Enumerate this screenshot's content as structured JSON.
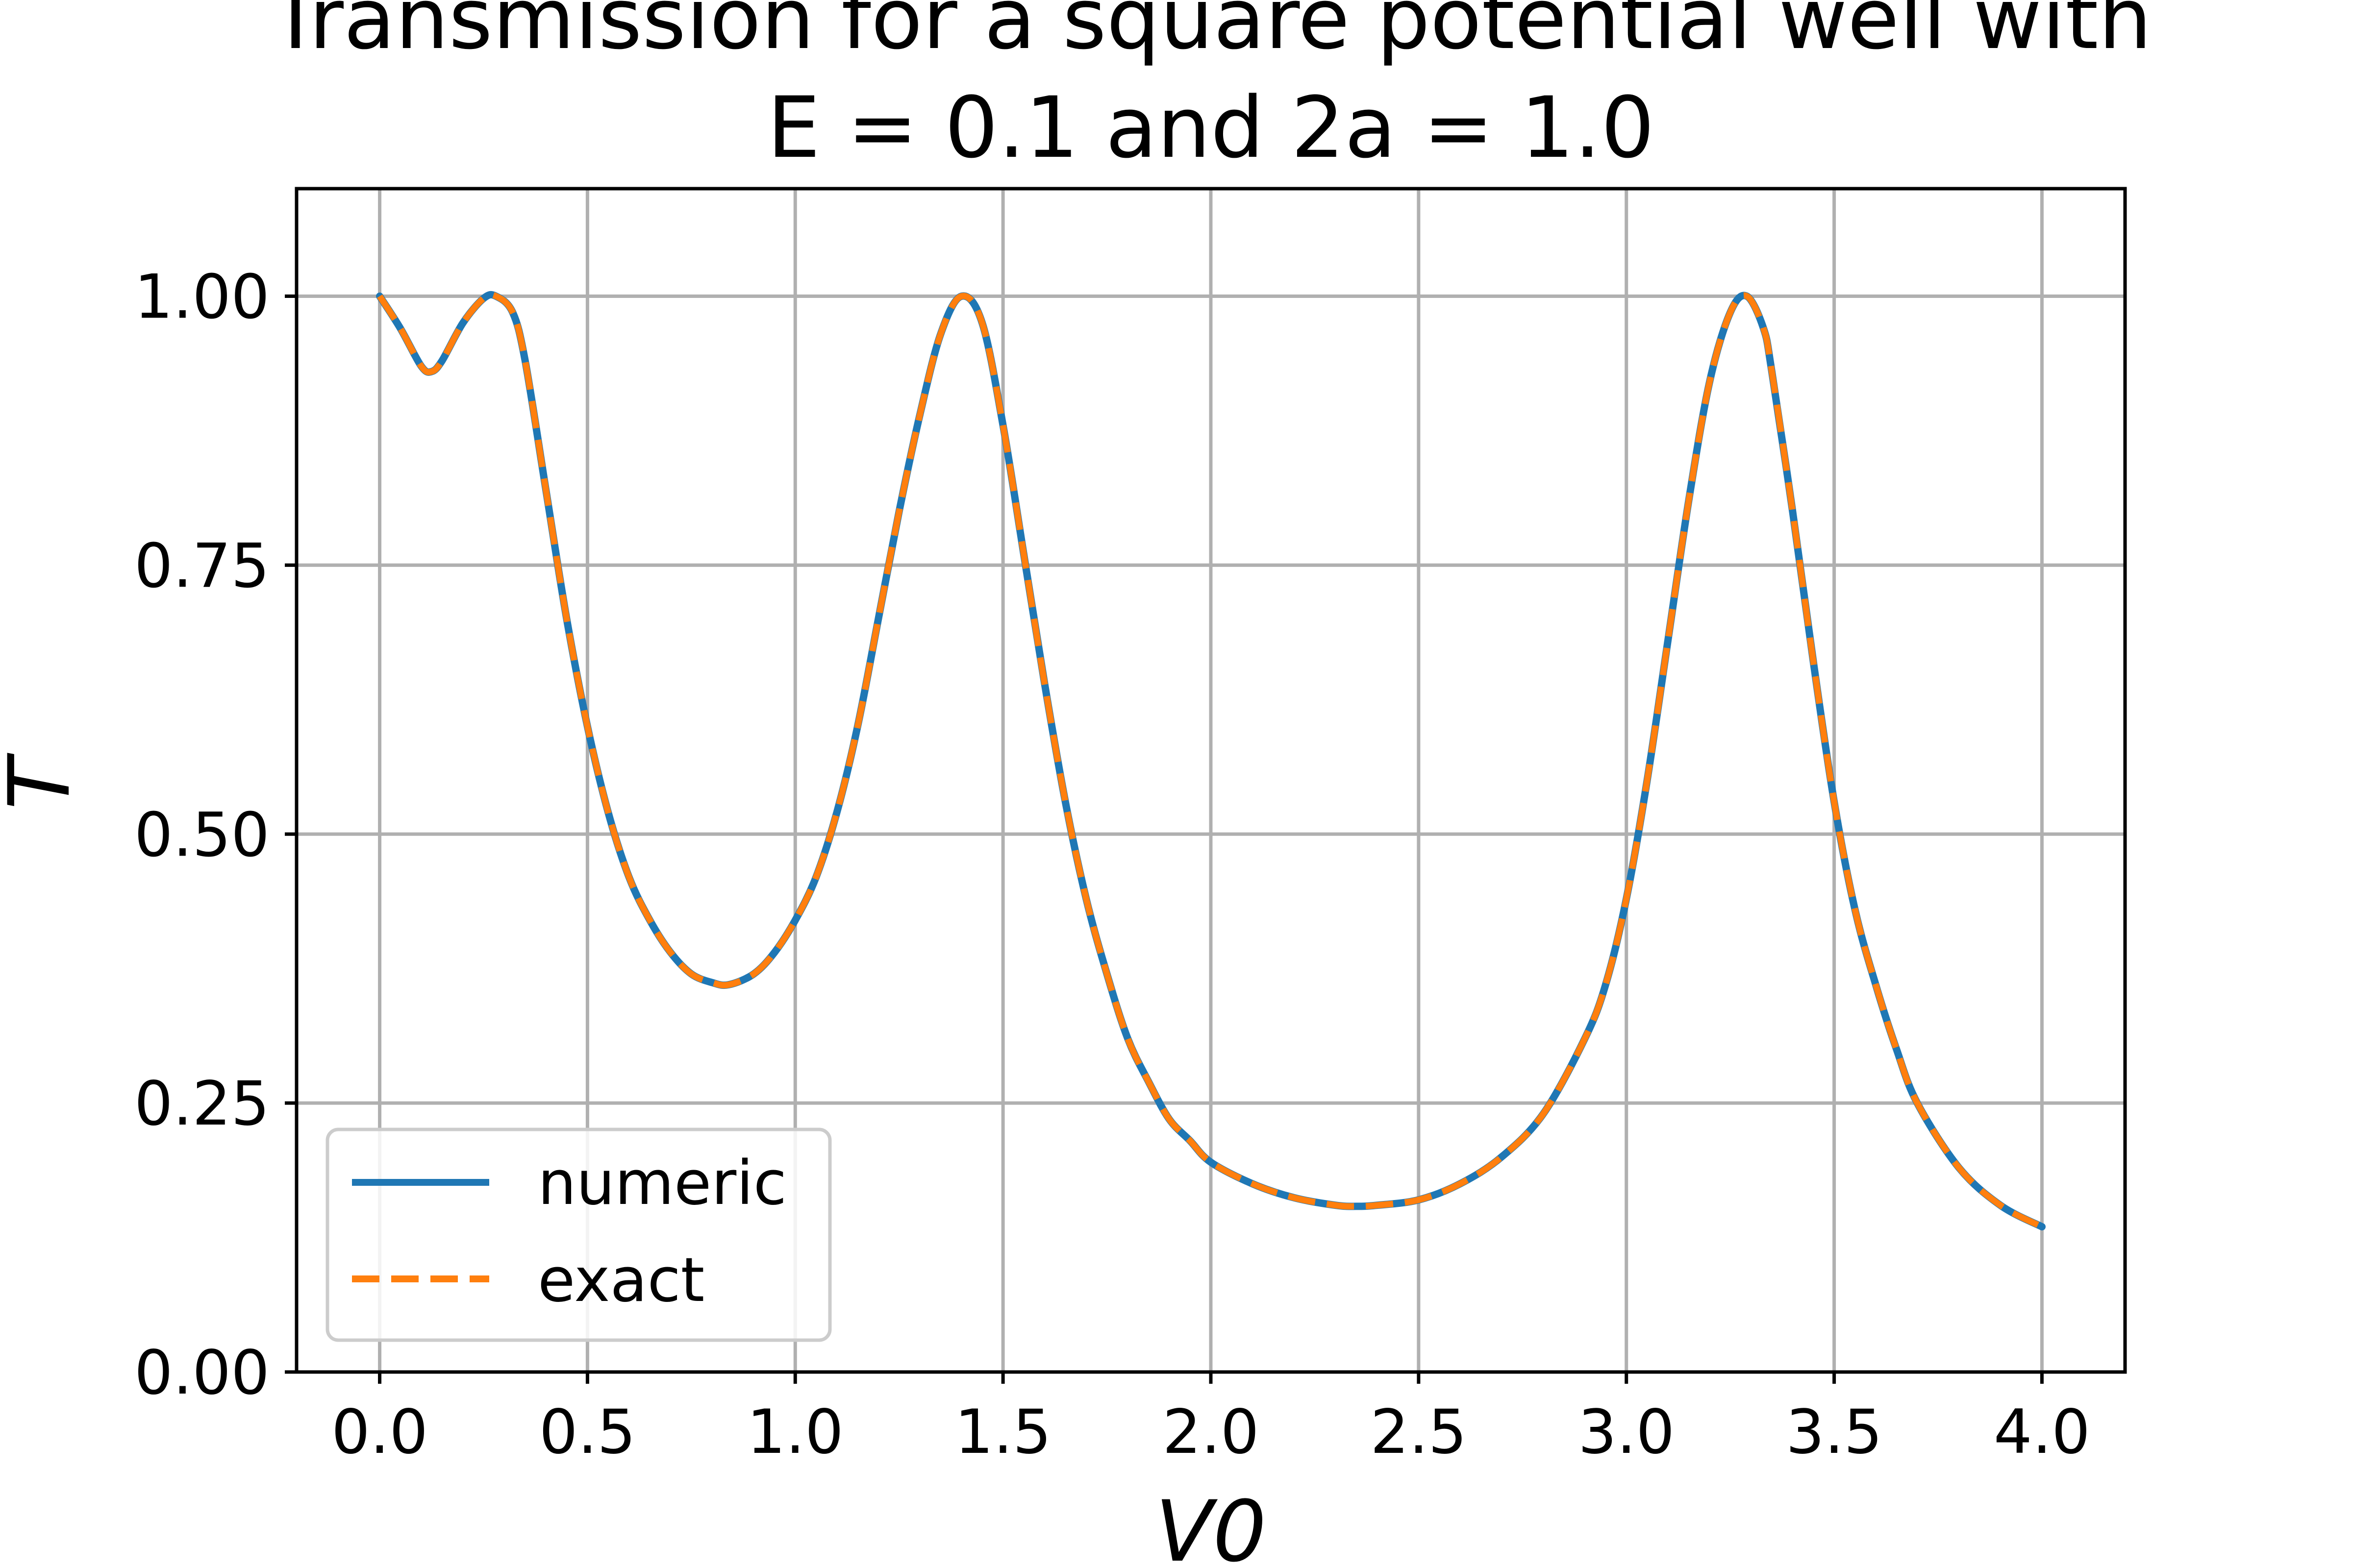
{
  "chart_data": {
    "type": "line",
    "title_line1": "Transmission for a square potential well with",
    "title_line2": "E = 0.1 and 2a = 1.0",
    "xlabel": "V0",
    "ylabel": "T",
    "xlim": [
      -0.2,
      4.2
    ],
    "ylim": [
      0.0,
      1.1
    ],
    "xticks": [
      0.0,
      0.5,
      1.0,
      1.5,
      2.0,
      2.5,
      3.0,
      3.5,
      4.0
    ],
    "xtick_labels": [
      "0.0",
      "0.5",
      "1.0",
      "1.5",
      "2.0",
      "2.5",
      "3.0",
      "3.5",
      "4.0"
    ],
    "yticks": [
      0.0,
      0.25,
      0.5,
      0.75,
      1.0
    ],
    "ytick_labels": [
      "0.00",
      "0.25",
      "0.50",
      "0.75",
      "1.00"
    ],
    "grid": true,
    "legend_position": "lower-left",
    "series": [
      {
        "name": "numeric",
        "color": "#1f77b4",
        "style": "solid",
        "x": [
          0.0,
          0.05,
          0.1,
          0.125,
          0.15,
          0.2,
          0.25,
          0.28,
          0.32,
          0.35,
          0.4,
          0.45,
          0.5,
          0.55,
          0.6,
          0.65,
          0.7,
          0.75,
          0.8,
          0.84,
          0.9,
          0.95,
          1.0,
          1.05,
          1.1,
          1.15,
          1.2,
          1.25,
          1.3,
          1.35,
          1.4,
          1.45,
          1.5,
          1.55,
          1.6,
          1.65,
          1.7,
          1.75,
          1.8,
          1.85,
          1.9,
          1.95,
          2.0,
          2.1,
          2.2,
          2.3,
          2.35,
          2.4,
          2.5,
          2.6,
          2.7,
          2.8,
          2.9,
          2.95,
          3.0,
          3.05,
          3.1,
          3.15,
          3.2,
          3.25,
          3.29,
          3.33,
          3.35,
          3.4,
          3.45,
          3.5,
          3.55,
          3.6,
          3.65,
          3.7,
          3.8,
          3.9,
          4.0
        ],
        "y": [
          1.0,
          0.97,
          0.935,
          0.93,
          0.94,
          0.975,
          0.998,
          1.0,
          0.985,
          0.94,
          0.82,
          0.7,
          0.6,
          0.52,
          0.46,
          0.42,
          0.39,
          0.37,
          0.362,
          0.36,
          0.37,
          0.39,
          0.42,
          0.46,
          0.52,
          0.6,
          0.7,
          0.8,
          0.89,
          0.965,
          1.0,
          0.975,
          0.88,
          0.76,
          0.64,
          0.53,
          0.44,
          0.37,
          0.31,
          0.27,
          0.235,
          0.215,
          0.195,
          0.175,
          0.162,
          0.155,
          0.154,
          0.155,
          0.16,
          0.175,
          0.2,
          0.24,
          0.31,
          0.36,
          0.44,
          0.55,
          0.68,
          0.81,
          0.92,
          0.985,
          1.0,
          0.97,
          0.93,
          0.8,
          0.66,
          0.53,
          0.43,
          0.36,
          0.3,
          0.25,
          0.19,
          0.155,
          0.135
        ]
      },
      {
        "name": "exact",
        "color": "#ff7f0e",
        "style": "dashed",
        "x": [
          0.0,
          0.05,
          0.1,
          0.125,
          0.15,
          0.2,
          0.25,
          0.28,
          0.32,
          0.35,
          0.4,
          0.45,
          0.5,
          0.55,
          0.6,
          0.65,
          0.7,
          0.75,
          0.8,
          0.84,
          0.9,
          0.95,
          1.0,
          1.05,
          1.1,
          1.15,
          1.2,
          1.25,
          1.3,
          1.35,
          1.4,
          1.45,
          1.5,
          1.55,
          1.6,
          1.65,
          1.7,
          1.75,
          1.8,
          1.85,
          1.9,
          1.95,
          2.0,
          2.1,
          2.2,
          2.3,
          2.35,
          2.4,
          2.5,
          2.6,
          2.7,
          2.8,
          2.9,
          2.95,
          3.0,
          3.05,
          3.1,
          3.15,
          3.2,
          3.25,
          3.29,
          3.33,
          3.35,
          3.4,
          3.45,
          3.5,
          3.55,
          3.6,
          3.65,
          3.7,
          3.8,
          3.9,
          4.0
        ],
        "y": [
          1.0,
          0.97,
          0.935,
          0.93,
          0.94,
          0.975,
          0.998,
          1.0,
          0.985,
          0.94,
          0.82,
          0.7,
          0.6,
          0.52,
          0.46,
          0.42,
          0.39,
          0.37,
          0.362,
          0.36,
          0.37,
          0.39,
          0.42,
          0.46,
          0.52,
          0.6,
          0.7,
          0.8,
          0.89,
          0.965,
          1.0,
          0.975,
          0.88,
          0.76,
          0.64,
          0.53,
          0.44,
          0.37,
          0.31,
          0.27,
          0.235,
          0.215,
          0.195,
          0.175,
          0.162,
          0.155,
          0.154,
          0.155,
          0.16,
          0.175,
          0.2,
          0.24,
          0.31,
          0.36,
          0.44,
          0.55,
          0.68,
          0.81,
          0.92,
          0.985,
          1.0,
          0.97,
          0.93,
          0.8,
          0.66,
          0.53,
          0.43,
          0.36,
          0.3,
          0.25,
          0.19,
          0.155,
          0.135
        ]
      }
    ]
  }
}
